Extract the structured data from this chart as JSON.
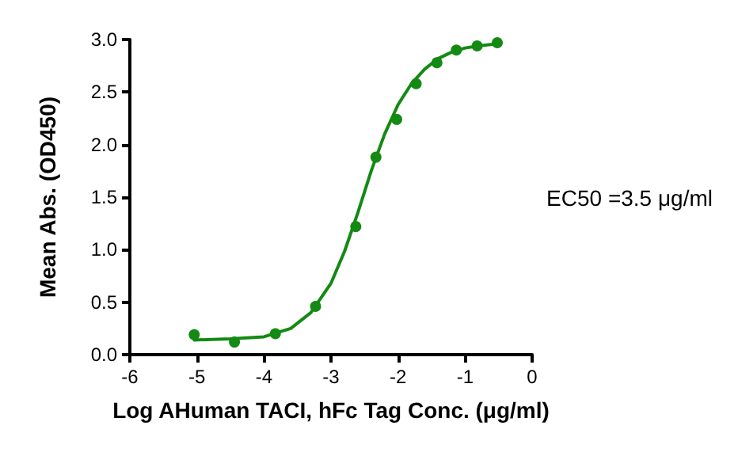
{
  "chart_data": {
    "type": "scatter",
    "xlabel": "Log AHuman TACI, hFc Tag Conc. (μg/ml)",
    "ylabel": "Mean Abs. (OD450)",
    "series": [
      {
        "color": "#138a13",
        "marker": "circle",
        "x": [
          -5.04,
          -4.44,
          -3.83,
          -3.23,
          -2.63,
          -2.33,
          -2.02,
          -1.73,
          -1.42,
          -1.13,
          -0.82,
          -0.52
        ],
        "values": [
          0.19,
          0.12,
          0.2,
          0.46,
          1.22,
          1.88,
          2.24,
          2.58,
          2.78,
          2.9,
          2.94,
          2.97
        ]
      },
      {
        "type": "line",
        "color": "#138a13",
        "marker": "none",
        "x": [
          -5.04,
          -4.5,
          -4.0,
          -3.6,
          -3.3,
          -3.0,
          -2.8,
          -2.6,
          -2.4,
          -2.2,
          -2.0,
          -1.8,
          -1.6,
          -1.4,
          -1.2,
          -1.0,
          -0.8,
          -0.52
        ],
        "values": [
          0.14,
          0.15,
          0.17,
          0.25,
          0.4,
          0.68,
          0.98,
          1.35,
          1.75,
          2.1,
          2.38,
          2.58,
          2.72,
          2.82,
          2.88,
          2.92,
          2.94,
          2.96
        ]
      }
    ],
    "annotations": [
      "EC50 =3.5 μg/ml"
    ],
    "xlim": [
      -6,
      0
    ],
    "xticks": [
      -6,
      -5,
      -4,
      -3,
      -2,
      -1,
      0
    ],
    "ylim": [
      0,
      3
    ],
    "yticks": [
      {
        "value": 0,
        "label": "0.0"
      },
      {
        "value": 0.5,
        "label": "0.5"
      },
      {
        "value": 1,
        "label": "1.0"
      },
      {
        "value": 1.5,
        "label": "1.5"
      },
      {
        "value": 2,
        "label": "2.0"
      },
      {
        "value": 2.5,
        "label": "2.5"
      },
      {
        "value": 3,
        "label": "3.0"
      }
    ],
    "grid": false
  }
}
